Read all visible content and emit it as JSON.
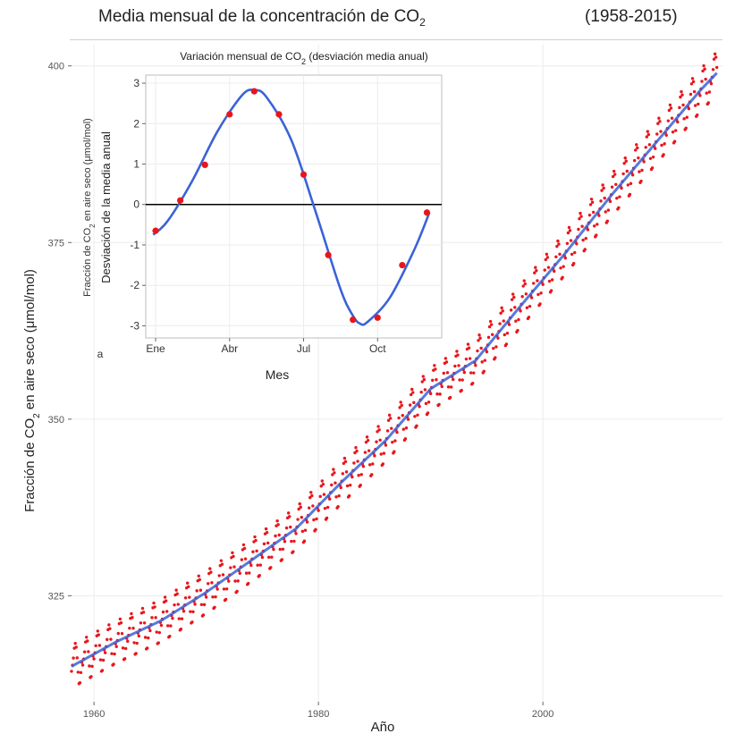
{
  "header": {
    "title_prefix": "Media mensual de la concentración de CO",
    "title_sub": "2",
    "period": "(1958-2015)"
  },
  "colors": {
    "points": "#e8161b",
    "trend": "#3b63d6",
    "zero_line": "#000000",
    "grid": "#ececec",
    "panel": "#ffffff"
  },
  "chart_data": [
    {
      "type": "scatter",
      "xlabel": "Año",
      "ylabel_prefix": "Fracción de CO",
      "ylabel_sub": "2",
      "ylabel_suffix": " en aire seco (μmol/mol)",
      "xlim": [
        1958,
        2016
      ],
      "ylim": [
        310,
        403
      ],
      "x_ticks": [
        1960,
        1980,
        2000
      ],
      "x_tick_labels": [
        "1960",
        "1980",
        "2000"
      ],
      "y_ticks": [
        325,
        350,
        375,
        400
      ],
      "y_tick_labels": [
        "325",
        "350",
        "375",
        "400"
      ],
      "grid": true,
      "trend_series": {
        "name": "trend",
        "x": [
          1958,
          1962,
          1966,
          1970,
          1974,
          1978,
          1982,
          1986,
          1990,
          1994,
          1998,
          2002,
          2006,
          2010,
          2014,
          2015.5
        ],
        "y": [
          315,
          318.5,
          321.5,
          325.5,
          330,
          334.5,
          341,
          347,
          354.3,
          358.3,
          366,
          373.5,
          381.5,
          389,
          396.5,
          399
        ]
      },
      "seasonal_amplitude": 3.0
    },
    {
      "type": "line",
      "title_prefix": "Variación mensual de CO",
      "title_sub": "2",
      "title_suffix": " (desviación media anual)",
      "xlabel": "Mes",
      "ylabel_line1_prefix": "Fracción de CO",
      "ylabel_line1_sub": "2",
      "ylabel_line1_suffix": " en aire seco (μmol/mol)",
      "ylabel_line2": "Desviación de la media anual",
      "x_ticks": [
        1,
        4,
        7,
        10
      ],
      "x_tick_labels": [
        "Ene",
        "Abr",
        "Jul",
        "Oct"
      ],
      "y_ticks": [
        -3,
        -2,
        -1,
        0,
        1,
        2,
        3
      ],
      "y_tick_labels": [
        "-3",
        "-2",
        "-1",
        "0",
        "1",
        "2",
        "3"
      ],
      "xlim": [
        0.6,
        12.6
      ],
      "ylim": [
        -3.3,
        3.2
      ],
      "months": [
        1,
        2,
        3,
        4,
        5,
        6,
        7,
        8,
        9,
        10,
        11,
        12
      ],
      "values": [
        -0.65,
        0.1,
        0.98,
        2.23,
        2.8,
        2.23,
        0.74,
        -1.25,
        -2.85,
        -2.8,
        -1.5,
        -0.2
      ],
      "smooth_x": [
        0.9,
        1.5,
        2.5,
        3.5,
        4.5,
        5.0,
        5.5,
        6.5,
        7.5,
        8.5,
        9.0,
        9.3,
        9.6,
        10.5,
        11.5,
        12.1
      ],
      "smooth_y": [
        -0.75,
        -0.4,
        0.6,
        1.8,
        2.7,
        2.83,
        2.65,
        1.6,
        -0.2,
        -2.1,
        -2.75,
        -2.95,
        -2.9,
        -2.3,
        -1.1,
        -0.2
      ]
    }
  ],
  "inset_corner_mark": "a"
}
